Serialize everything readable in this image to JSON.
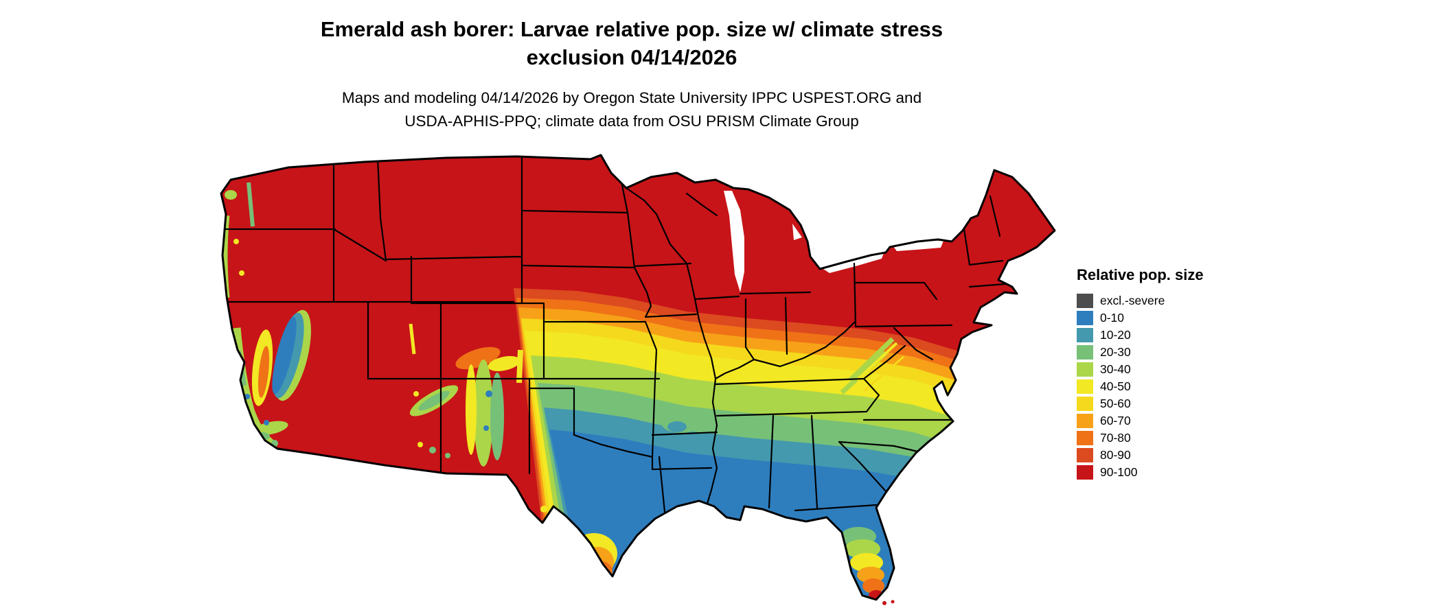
{
  "title": {
    "line1": "Emerald ash borer: Larvae relative pop. size w/ climate stress",
    "line2": "exclusion 04/14/2026"
  },
  "subtitle": {
    "line1": "Maps and modeling 04/14/2026 by Oregon State University IPPC USPEST.ORG and",
    "line2": "USDA-APHIS-PPQ; climate data from OSU PRISM Climate Group"
  },
  "legend": {
    "title": "Relative pop. size",
    "items": [
      {
        "label": "excl.-severe",
        "color": "#4d4d4d"
      },
      {
        "label": "0-10",
        "color": "#2e7ebe"
      },
      {
        "label": "10-20",
        "color": "#4499ae"
      },
      {
        "label": "20-30",
        "color": "#77c078"
      },
      {
        "label": "30-40",
        "color": "#abd649"
      },
      {
        "label": "40-50",
        "color": "#f2e823"
      },
      {
        "label": "50-60",
        "color": "#f5d91d"
      },
      {
        "label": "60-70",
        "color": "#f7a118"
      },
      {
        "label": "70-80",
        "color": "#ef7217"
      },
      {
        "label": "80-90",
        "color": "#dc4a20"
      },
      {
        "label": "90-100",
        "color": "#c71418"
      }
    ]
  },
  "map": {
    "region": "Contiguous United States",
    "water_color": "#ffffff",
    "state_border_color": "#000000"
  }
}
